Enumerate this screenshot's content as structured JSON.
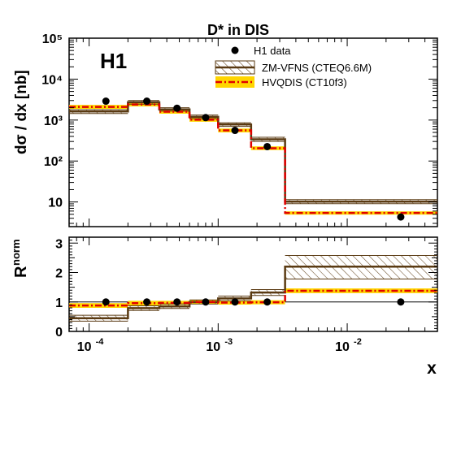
{
  "chart_data": [
    {
      "type": "step-histogram",
      "title": "D* in DIS",
      "experiment_label": "H1",
      "xlabel": "x",
      "ylabel": "dσ / dx [nb]",
      "xscale": "log",
      "yscale": "log",
      "xlim": [
        7e-05,
        0.05
      ],
      "ylim": [
        2.5,
        100000
      ],
      "ytick_labels": [
        "10",
        "10²",
        "10³",
        "10⁴",
        "10⁵"
      ],
      "legend_position": "top-right",
      "bin_edges": [
        7e-05,
        0.0002,
        0.00035,
        0.0006,
        0.001,
        0.0018,
        0.0033,
        0.05
      ],
      "series": [
        {
          "name": "H1 data",
          "style": "points",
          "color": "#000000",
          "x": [
            0.000135,
            0.00028,
            0.00048,
            0.0008,
            0.00135,
            0.0024,
            0.026
          ],
          "values": [
            2900,
            2900,
            1950,
            1150,
            560,
            225,
            4.3
          ]
        },
        {
          "name": "ZM-VFNS (CTEQ6.6M)",
          "style": "hatched-band",
          "color": "#5a3a12",
          "values": [
            1620,
            2720,
            1820,
            1200,
            780,
            340,
            10.2
          ],
          "lower": [
            1450,
            2450,
            1650,
            1080,
            700,
            300,
            9.1
          ],
          "upper": [
            1800,
            3000,
            2000,
            1330,
            860,
            380,
            11.4
          ]
        },
        {
          "name": "HVQDIS (CT10f3)",
          "style": "dash-dot-band",
          "color": "#e00000",
          "band_color": "#ffd500",
          "values": [
            2100,
            2400,
            1600,
            1020,
            560,
            205,
            5.4
          ],
          "lower": [
            1880,
            2150,
            1430,
            910,
            500,
            185,
            4.9
          ],
          "upper": [
            2350,
            2680,
            1790,
            1140,
            620,
            228,
            5.9
          ]
        }
      ]
    },
    {
      "type": "step-histogram",
      "xlabel": "x",
      "ylabel": "R",
      "ylabel_superscript": "norm",
      "xscale": "log",
      "xlim": [
        7e-05,
        0.05
      ],
      "ylim": [
        0,
        3.2
      ],
      "xtick_labels": [
        {
          "base": "10",
          "exp": "-4"
        },
        {
          "base": "10",
          "exp": "-3"
        },
        {
          "base": "10",
          "exp": "-2"
        }
      ],
      "ytick_labels": [
        "0",
        "1",
        "2",
        "3"
      ],
      "reference_line": 1,
      "series": [
        {
          "name": "H1 data",
          "style": "points",
          "x": [
            0.000135,
            0.00028,
            0.00048,
            0.0008,
            0.00135,
            0.0024,
            0.026
          ],
          "values": [
            1,
            1,
            1,
            1,
            1,
            1,
            1
          ]
        },
        {
          "name": "ZM-VFNS (CTEQ6.6M)",
          "style": "hatched-band",
          "values": [
            0.45,
            0.79,
            0.85,
            1.0,
            1.12,
            1.32,
            2.2
          ],
          "lower": [
            0.35,
            0.71,
            0.78,
            0.93,
            1.04,
            1.22,
            1.78
          ],
          "upper": [
            0.55,
            0.87,
            0.93,
            1.07,
            1.2,
            1.42,
            2.58
          ]
        },
        {
          "name": "HVQDIS (CT10f3)",
          "style": "dash-dot-band",
          "values": [
            0.88,
            0.96,
            0.97,
            1.0,
            0.98,
            0.99,
            1.38
          ],
          "lower": [
            0.8,
            0.88,
            0.9,
            0.93,
            0.91,
            0.92,
            1.3
          ],
          "upper": [
            0.96,
            1.04,
            1.04,
            1.07,
            1.05,
            1.06,
            1.46
          ]
        }
      ]
    }
  ]
}
